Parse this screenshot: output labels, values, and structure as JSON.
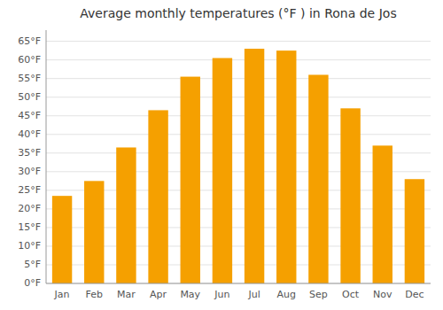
{
  "chart_data": {
    "type": "bar",
    "title": "Average monthly temperatures (°F ) in Rona de Jos",
    "categories": [
      "Jan",
      "Feb",
      "Mar",
      "Apr",
      "May",
      "Jun",
      "Jul",
      "Aug",
      "Sep",
      "Oct",
      "Nov",
      "Dec"
    ],
    "values": [
      23.5,
      27.5,
      36.5,
      46.5,
      55.5,
      60.5,
      63.0,
      62.5,
      56.0,
      47.0,
      37.0,
      28.0
    ],
    "color": "#F5A000",
    "ylim": [
      0,
      68
    ],
    "yticks": [
      {
        "value": 0,
        "label": "0°F"
      },
      {
        "value": 5,
        "label": "5°F"
      },
      {
        "value": 10,
        "label": "10°F"
      },
      {
        "value": 15,
        "label": "15°F"
      },
      {
        "value": 20,
        "label": "20°F"
      },
      {
        "value": 25,
        "label": "25°F"
      },
      {
        "value": 30,
        "label": "30°F"
      },
      {
        "value": 35,
        "label": "35°F"
      },
      {
        "value": 40,
        "label": "40°F"
      },
      {
        "value": 45,
        "label": "45°F"
      },
      {
        "value": 50,
        "label": "50°F"
      },
      {
        "value": 55,
        "label": "55°F"
      },
      {
        "value": 60,
        "label": "60°F"
      },
      {
        "value": 65,
        "label": "65°F"
      }
    ],
    "grid": true
  }
}
